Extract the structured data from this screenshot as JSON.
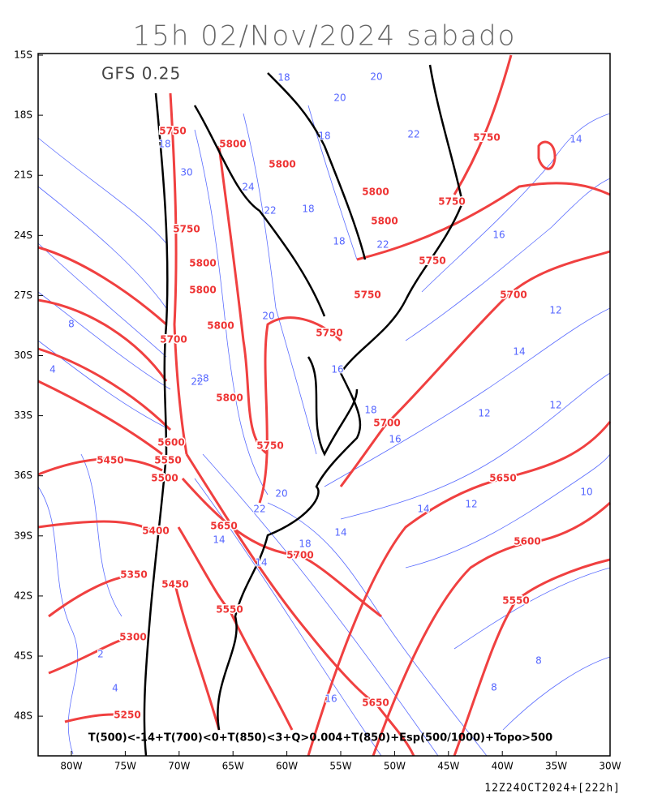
{
  "header": {
    "title": "15h 02/Nov/2024 sabado"
  },
  "map": {
    "model": "GFS 0.25",
    "lat_labels": [
      "15S",
      "18S",
      "21S",
      "24S",
      "27S",
      "30S",
      "33S",
      "36S",
      "39S",
      "42S",
      "45S",
      "48S"
    ],
    "lon_labels": [
      "80W",
      "75W",
      "70W",
      "65W",
      "60W",
      "55W",
      "50W",
      "45W",
      "40W",
      "35W",
      "30W"
    ],
    "red_contour_labels": [
      "5750",
      "5800",
      "5800",
      "5800",
      "5750",
      "5750",
      "5800",
      "5750",
      "5800",
      "5750",
      "5800",
      "5750",
      "5700",
      "5800",
      "5750",
      "5700",
      "5800",
      "5700",
      "5750",
      "5600",
      "5550",
      "5450",
      "5500",
      "5650",
      "5650",
      "5400",
      "5600",
      "5700",
      "5350",
      "5450",
      "5550",
      "5550",
      "5300",
      "5650",
      "5250"
    ],
    "blue_contour_labels": [
      "18",
      "20",
      "20",
      "18",
      "22",
      "18",
      "30",
      "24",
      "22",
      "18",
      "18",
      "22",
      "16",
      "14",
      "20",
      "16",
      "12",
      "14",
      "12",
      "12",
      "16",
      "18",
      "8",
      "4",
      "20",
      "22",
      "14",
      "14",
      "18",
      "14",
      "14",
      "12",
      "10",
      "8",
      "8",
      "16",
      "2",
      "4",
      "28",
      "22"
    ],
    "legend": "T(500)<-14+T(700)<0+T(850)<3+Q>0.004+T(850)+Esp(500/1000)+Topo>500"
  },
  "footer": {
    "run": "12Z24OCT2024+[222h]"
  }
}
